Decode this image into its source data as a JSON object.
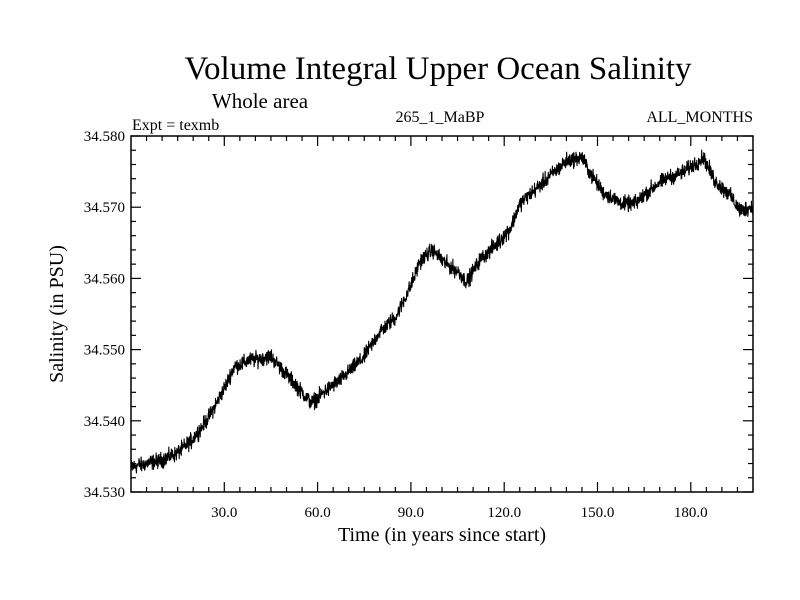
{
  "chart_data": {
    "type": "line",
    "title": "Volume Integral Upper Ocean Salinity",
    "subtitle": "Whole area",
    "expt_label": "Expt = texmb",
    "run_label": "265_1_MaBP",
    "months_label": "ALL_MONTHS",
    "xlabel": "Time (in years since start)",
    "ylabel": "Salinity (in PSU)",
    "xlim": [
      0,
      200
    ],
    "ylim": [
      34.53,
      34.58
    ],
    "x_ticks": [
      {
        "value": 30,
        "label": "30.0"
      },
      {
        "value": 60,
        "label": "60.0"
      },
      {
        "value": 90,
        "label": "90.0"
      },
      {
        "value": 120,
        "label": "120.0"
      },
      {
        "value": 150,
        "label": "150.0"
      },
      {
        "value": 180,
        "label": "180.0"
      }
    ],
    "y_ticks": [
      {
        "value": 34.53,
        "label": "34.530"
      },
      {
        "value": 34.54,
        "label": "34.540"
      },
      {
        "value": 34.55,
        "label": "34.550"
      },
      {
        "value": 34.56,
        "label": "34.560"
      },
      {
        "value": 34.57,
        "label": "34.570"
      },
      {
        "value": 34.58,
        "label": "34.580"
      }
    ],
    "grid": false,
    "sampling": "monthly",
    "noise_amplitude": 0.0012,
    "series": [
      {
        "name": "salinity",
        "color": "#000000",
        "trend_x": [
          0,
          5,
          10,
          15,
          20,
          25,
          30,
          33,
          38,
          45,
          50,
          55,
          58,
          62,
          68,
          75,
          80,
          85,
          90,
          93,
          97,
          100,
          105,
          108,
          112,
          118,
          122,
          125,
          130,
          135,
          140,
          145,
          148,
          152,
          158,
          162,
          167,
          172,
          178,
          184,
          188,
          192,
          196,
          200
        ],
        "trend_y": [
          34.5335,
          34.534,
          34.5345,
          34.5355,
          34.5375,
          34.5405,
          34.5445,
          34.5475,
          34.5485,
          34.549,
          34.5465,
          34.544,
          34.5425,
          34.544,
          34.546,
          34.549,
          34.5525,
          34.5545,
          34.559,
          34.5625,
          34.564,
          34.5625,
          34.561,
          34.5595,
          34.5625,
          34.565,
          34.567,
          34.5705,
          34.5725,
          34.5745,
          34.5765,
          34.577,
          34.5745,
          34.572,
          34.5705,
          34.5705,
          34.5725,
          34.574,
          34.575,
          34.577,
          34.5735,
          34.572,
          34.5695,
          34.57
        ]
      }
    ]
  }
}
